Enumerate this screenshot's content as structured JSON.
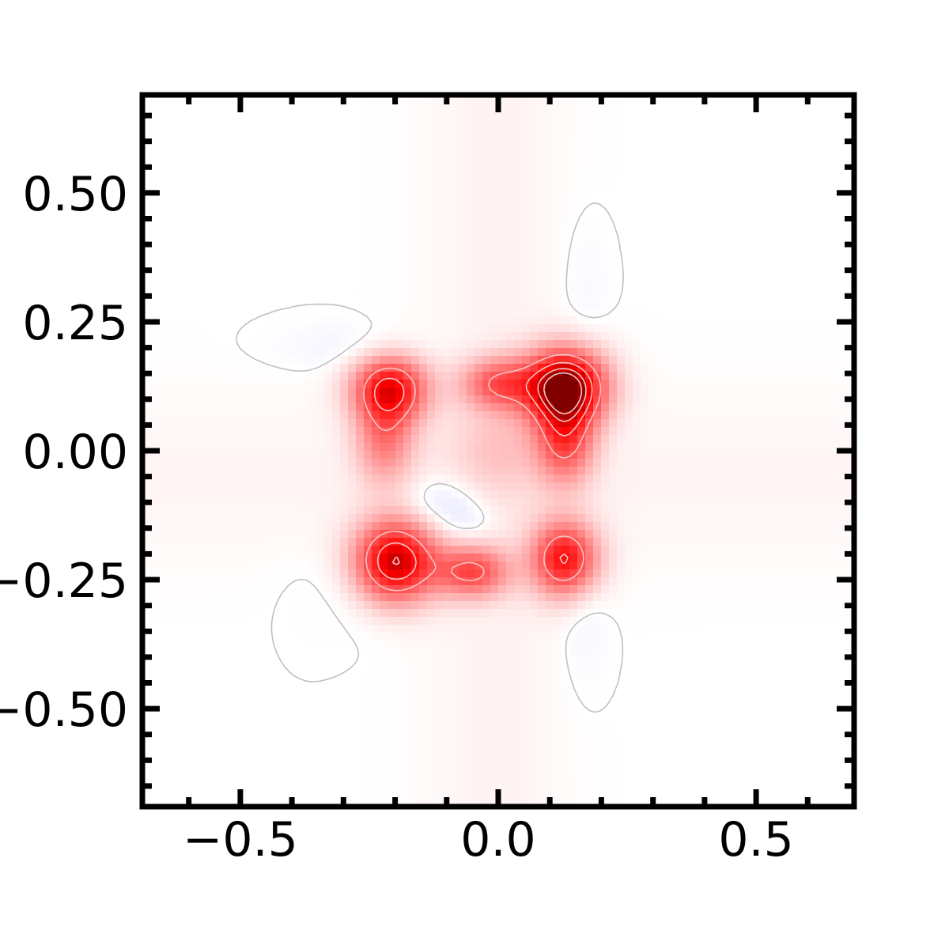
{
  "chart_data": {
    "type": "heatmap",
    "title": "",
    "xlabel": "",
    "ylabel": "",
    "xlim": [
      -0.69,
      0.69
    ],
    "ylim": [
      -0.69,
      0.69
    ],
    "x_ticks": [
      {
        "value": -0.5,
        "label": "−0.5"
      },
      {
        "value": 0.0,
        "label": "0.0"
      },
      {
        "value": 0.5,
        "label": "0.5"
      }
    ],
    "y_ticks": [
      {
        "value": 0.5,
        "label": "0.50"
      },
      {
        "value": 0.25,
        "label": "0.25"
      },
      {
        "value": 0.0,
        "label": "0.00"
      },
      {
        "value": -0.25,
        "label": "−0.25"
      },
      {
        "value": -0.5,
        "label": "−0.50"
      }
    ],
    "minor_tick_step": 0.1,
    "colormap": "bwr",
    "color_range": [
      -1,
      1
    ],
    "grid": false,
    "legend": "none",
    "peaks": [
      {
        "x": 0.13,
        "y": 0.125,
        "amplitude": 1.0,
        "sx": 0.055,
        "sy": 0.05
      },
      {
        "x": 0.13,
        "y": 0.02,
        "amplitude": 0.5,
        "sx": 0.04,
        "sy": 0.06
      },
      {
        "x": 0.0,
        "y": 0.13,
        "amplitude": 0.45,
        "sx": 0.05,
        "sy": 0.035
      },
      {
        "x": -0.21,
        "y": 0.12,
        "amplitude": 0.72,
        "sx": 0.05,
        "sy": 0.045
      },
      {
        "x": -0.22,
        "y": 0.02,
        "amplitude": 0.35,
        "sx": 0.04,
        "sy": 0.06
      },
      {
        "x": -0.2,
        "y": -0.215,
        "amplitude": 0.85,
        "sx": 0.055,
        "sy": 0.055
      },
      {
        "x": -0.05,
        "y": -0.235,
        "amplitude": 0.5,
        "sx": 0.05,
        "sy": 0.035
      },
      {
        "x": 0.13,
        "y": -0.21,
        "amplitude": 0.7,
        "sx": 0.045,
        "sy": 0.05
      },
      {
        "x": 0.0,
        "y": 0.0,
        "amplitude": 0.12,
        "sx": 0.06,
        "sy": 0.06
      },
      {
        "x": -0.11,
        "y": -0.1,
        "amplitude": -0.12,
        "sx": 0.05,
        "sy": 0.035
      },
      {
        "x": -0.06,
        "y": -0.14,
        "amplitude": -0.08,
        "sx": 0.04,
        "sy": 0.03
      },
      {
        "x": -0.27,
        "y": 0.2,
        "amplitude": -0.05,
        "sx": 0.1,
        "sy": 0.03
      },
      {
        "x": 0.17,
        "y": -0.3,
        "amplitude": -0.05,
        "sx": 0.03,
        "sy": 0.1
      },
      {
        "x": 0.17,
        "y": 0.3,
        "amplitude": -0.03,
        "sx": 0.03,
        "sy": 0.1
      },
      {
        "x": -0.27,
        "y": -0.27,
        "amplitude": -0.03,
        "sx": 0.08,
        "sy": 0.06
      }
    ],
    "ridges": [
      {
        "orientation": "vertical",
        "center": -0.01,
        "amplitude": 0.035,
        "width": 0.1
      },
      {
        "orientation": "horizontal",
        "center": -0.05,
        "amplitude": 0.03,
        "width": 0.12
      }
    ],
    "contour_levels": [
      0.0,
      0.5,
      0.7,
      0.85,
      0.95
    ],
    "contour_color_zero": "#c0c0c0",
    "contour_color_high": "#f4c4c4"
  }
}
